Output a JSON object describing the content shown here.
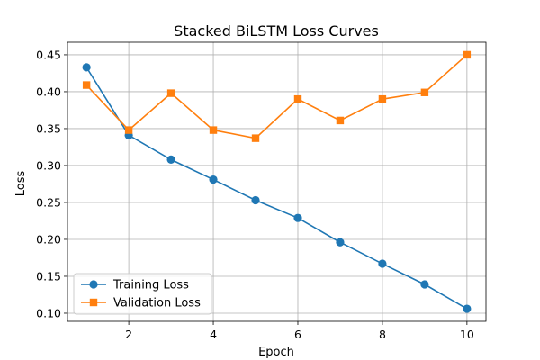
{
  "chart_data": {
    "type": "line",
    "title": "Stacked BiLSTM Loss Curves",
    "xlabel": "Epoch",
    "ylabel": "Loss",
    "x": [
      1,
      2,
      3,
      4,
      5,
      6,
      7,
      8,
      9,
      10
    ],
    "xlim": [
      0.55,
      10.45
    ],
    "ylim": [
      0.089,
      0.467
    ],
    "xticks": [
      2,
      4,
      6,
      8,
      10
    ],
    "yticks": [
      0.1,
      0.15,
      0.2,
      0.25,
      0.3,
      0.35,
      0.4,
      0.45
    ],
    "xtick_labels": [
      "2",
      "4",
      "6",
      "8",
      "10"
    ],
    "ytick_labels": [
      "0.10",
      "0.15",
      "0.20",
      "0.25",
      "0.30",
      "0.35",
      "0.40",
      "0.45"
    ],
    "grid": true,
    "legend_position": "lower-left",
    "series": [
      {
        "name": "Training Loss",
        "color": "#1f77b4",
        "marker": "circle",
        "values": [
          0.433,
          0.341,
          0.308,
          0.281,
          0.253,
          0.229,
          0.196,
          0.167,
          0.139,
          0.106
        ]
      },
      {
        "name": "Validation Loss",
        "color": "#ff7f0e",
        "marker": "square",
        "values": [
          0.409,
          0.348,
          0.398,
          0.348,
          0.337,
          0.39,
          0.361,
          0.39,
          0.399,
          0.45
        ]
      }
    ]
  }
}
